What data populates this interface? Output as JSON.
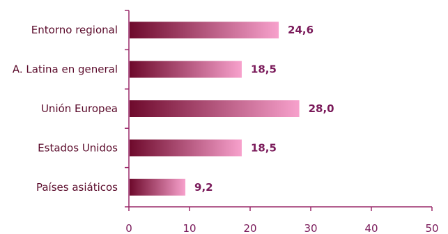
{
  "chart_data": {
    "type": "bar",
    "orientation": "horizontal",
    "categories": [
      "Entorno regional",
      "A. Latina en general",
      "Unión Europea",
      "Estados Unidos",
      "Países asiáticos"
    ],
    "values": [
      24.6,
      18.5,
      28.0,
      18.5,
      9.2
    ],
    "value_labels": [
      "24,6",
      "18,5",
      "28,0",
      "18,5",
      "9,2"
    ],
    "title": "",
    "xlabel": "",
    "ylabel": "",
    "xlim": [
      0,
      50
    ],
    "xticks": [
      0,
      10,
      20,
      30,
      40,
      50
    ],
    "grid": false,
    "legend": "none",
    "colors": {
      "bar_dark": "#6e0a2c",
      "bar_light": "#f7a1cc",
      "axis": "#9a2a6a",
      "text": "#7a1a5a"
    }
  }
}
